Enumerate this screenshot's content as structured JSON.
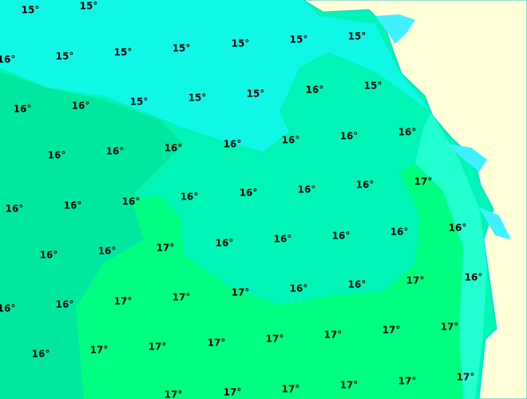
{
  "labels": [
    "15°",
    "15°",
    "16°",
    "15°",
    "15°",
    "15°",
    "15°",
    "15°",
    "15°",
    "16°",
    "16°",
    "15°",
    "15°",
    "15°",
    "16°",
    "15°",
    "16°",
    "16°",
    "16°",
    "16°",
    "16°",
    "16°",
    "16°",
    "16°",
    "16°",
    "16°",
    "16°",
    "16°",
    "16°",
    "16°",
    "17°",
    "16°",
    "16°",
    "17°",
    "16°",
    "16°",
    "16°",
    "16°",
    "16°",
    "16°",
    "16°",
    "17°",
    "17°",
    "17°",
    "16°",
    "16°",
    "17°",
    "16°",
    "16°",
    "17°",
    "17°",
    "17°",
    "17°",
    "17°",
    "17°",
    "17°",
    "17°",
    "17°",
    "17°",
    "17°",
    "17°",
    "17°"
  ]
}
